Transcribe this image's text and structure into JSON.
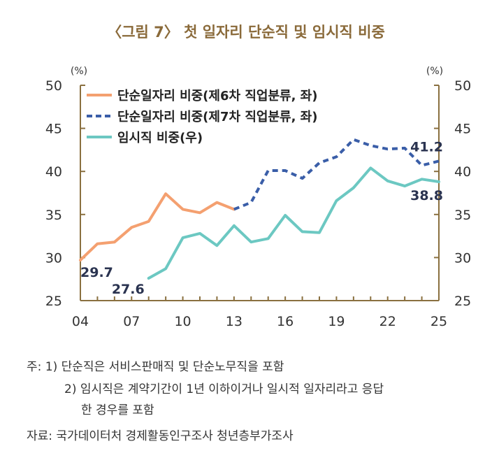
{
  "title": "〈그림 7〉 첫 일자리 단순직 및 임시직 비중",
  "notes": {
    "line1": "주: 1) 단순직은 서비스판매직 및 단순노무직을 포함",
    "line2": "2) 임시직은 계약기간이 1년 이하이거나 일시적 일자리라고 응답",
    "line3": "한 경우를 포함",
    "source": "자료: 국가데이터처 경제활동인구조사 청년층부가조사"
  },
  "colors": {
    "orange": "#f4a070",
    "navy": "#3a5ea8",
    "teal": "#6cc8c2",
    "axis": "#8a7040"
  },
  "chart_data": {
    "type": "line",
    "title": "〈그림 7〉 첫 일자리 단순직 및 임시직 비중",
    "x_tick_labels": [
      "04",
      "07",
      "10",
      "13",
      "16",
      "19",
      "22",
      "25"
    ],
    "x_tick_values": [
      2004,
      2007,
      2010,
      2013,
      2016,
      2019,
      2022,
      2025
    ],
    "xlim": [
      2004,
      2025
    ],
    "ylim": [
      25,
      50
    ],
    "yticks": [
      25,
      30,
      35,
      40,
      45,
      50
    ],
    "y_left_unit": "(%)",
    "y_right_unit": "(%)",
    "series": [
      {
        "name": "단순일자리 비중(제6차 직업분류, 좌)",
        "style": "solid",
        "color": "#f4a070",
        "axis": "left",
        "x": [
          2004,
          2005,
          2006,
          2007,
          2008,
          2009,
          2010,
          2011,
          2012,
          2013
        ],
        "values": [
          29.7,
          31.6,
          31.8,
          33.5,
          34.2,
          37.4,
          35.6,
          35.2,
          36.4,
          35.6
        ]
      },
      {
        "name": "단순일자리 비중(제7차 직업분류, 좌)",
        "style": "dashed",
        "color": "#3a5ea8",
        "axis": "left",
        "x": [
          2013,
          2014,
          2015,
          2016,
          2017,
          2018,
          2019,
          2020,
          2021,
          2022,
          2023,
          2024,
          2025
        ],
        "values": [
          35.6,
          36.4,
          40.1,
          40.1,
          39.2,
          41.0,
          41.7,
          43.7,
          43.0,
          42.6,
          42.7,
          40.7,
          41.2
        ]
      },
      {
        "name": "임시직 비중(우)",
        "style": "solid",
        "color": "#6cc8c2",
        "axis": "right",
        "x": [
          2008,
          2009,
          2010,
          2011,
          2012,
          2013,
          2014,
          2015,
          2016,
          2017,
          2018,
          2019,
          2020,
          2021,
          2022,
          2023,
          2024,
          2025
        ],
        "values": [
          27.6,
          28.7,
          32.3,
          32.8,
          31.4,
          33.7,
          31.8,
          32.2,
          34.9,
          33.0,
          32.9,
          36.6,
          38.1,
          40.4,
          38.9,
          38.3,
          39.1,
          38.8
        ]
      }
    ],
    "data_labels": [
      {
        "text": "29.7",
        "series": 0,
        "point": "first"
      },
      {
        "text": "27.6",
        "series": 2,
        "point": "first"
      },
      {
        "text": "41.2",
        "series": 1,
        "point": "last"
      },
      {
        "text": "38.8",
        "series": 2,
        "point": "last"
      }
    ]
  }
}
